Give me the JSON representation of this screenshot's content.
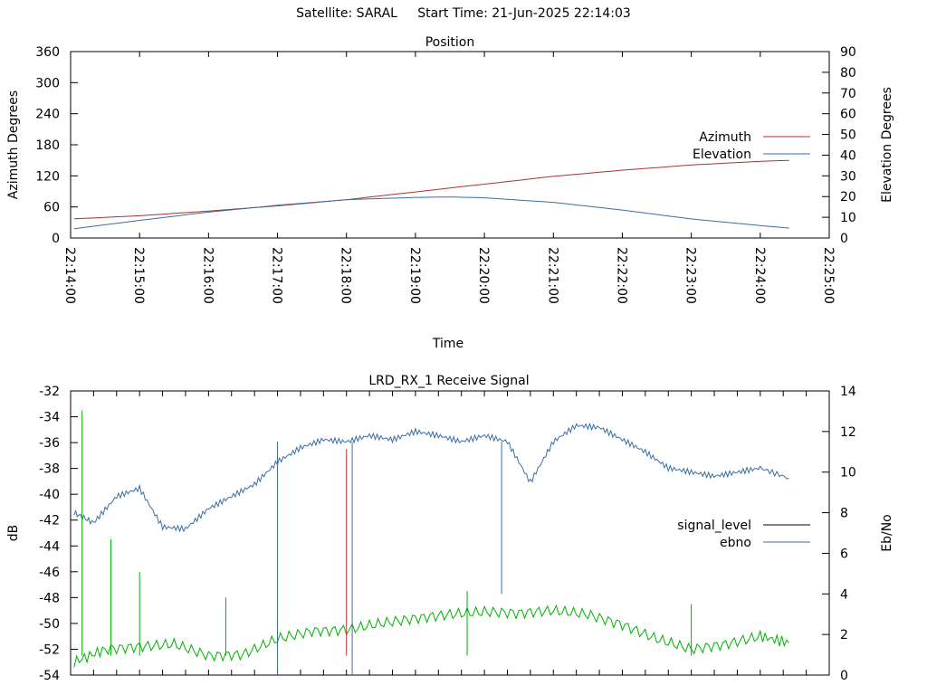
{
  "page_title": "Satellite: SARAL     Start Time: 21-Jun-2025 22:14:03",
  "colors": {
    "azimuth": "#a83232",
    "elevation": "#3a6ea5",
    "signal_level": "#000000",
    "ebno": "#3a6ea5",
    "green_trace": "#00b000",
    "red_trace": "#c03030"
  },
  "chart_data": [
    {
      "type": "line",
      "title": "Position",
      "xlabel": "Time",
      "ylabel": "Azimuth Degrees",
      "y2label": "Elevation Degrees",
      "xlim": [
        "22:14:00",
        "22:25:00"
      ],
      "ylim": [
        0,
        360
      ],
      "y2lim": [
        0,
        90
      ],
      "x_ticks": [
        "22:14:00",
        "22:15:00",
        "22:16:00",
        "22:17:00",
        "22:18:00",
        "22:19:00",
        "22:20:00",
        "22:21:00",
        "22:22:00",
        "22:23:00",
        "22:24:00",
        "22:25:00"
      ],
      "y_ticks": [
        "0",
        "60",
        "120",
        "180",
        "240",
        "300",
        "360"
      ],
      "y2_ticks": [
        "0",
        "10",
        "20",
        "30",
        "40",
        "50",
        "60",
        "70",
        "80",
        "90"
      ],
      "legend_position": "right",
      "grid": false,
      "series": [
        {
          "name": "Azimuth",
          "axis": "left",
          "x": [
            "22:14:03",
            "22:15:00",
            "22:16:00",
            "22:17:00",
            "22:18:00",
            "22:19:00",
            "22:20:00",
            "22:21:00",
            "22:22:00",
            "22:23:00",
            "22:24:00",
            "22:24:25"
          ],
          "values": [
            37,
            43,
            52,
            62,
            74,
            89,
            104,
            119,
            131,
            141,
            148,
            150
          ]
        },
        {
          "name": "Elevation",
          "axis": "right",
          "x": [
            "22:14:03",
            "22:15:00",
            "22:16:00",
            "22:17:00",
            "22:18:00",
            "22:19:00",
            "22:19:30",
            "22:20:00",
            "22:21:00",
            "22:22:00",
            "22:23:00",
            "22:24:00",
            "22:24:25"
          ],
          "values": [
            4.5,
            8.5,
            12.5,
            15.8,
            18.5,
            19.6,
            19.8,
            19.4,
            17.2,
            13.5,
            9.2,
            6.0,
            4.8
          ]
        }
      ]
    },
    {
      "type": "line",
      "title": "LRD_RX_1 Receive Signal",
      "xlabel": "",
      "ylabel": "dB",
      "y2label": "Eb/No",
      "xlim": [
        "22:14:00",
        "22:25:00"
      ],
      "ylim": [
        -54,
        -32
      ],
      "y2lim": [
        0,
        14
      ],
      "y_ticks": [
        "-54",
        "-52",
        "-50",
        "-48",
        "-46",
        "-44",
        "-42",
        "-40",
        "-38",
        "-36",
        "-34",
        "-32"
      ],
      "y2_ticks": [
        "0",
        "2",
        "4",
        "6",
        "8",
        "10",
        "12",
        "14"
      ],
      "legend_position": "right",
      "grid": false,
      "series": [
        {
          "name": "signal_level",
          "axis": "left",
          "x": [
            "22:14:03",
            "22:14:30",
            "22:15:00",
            "22:15:30",
            "22:16:00",
            "22:16:30",
            "22:17:00",
            "22:17:30",
            "22:18:00",
            "22:18:30",
            "22:19:00",
            "22:19:30",
            "22:20:00",
            "22:20:30",
            "22:21:00",
            "22:21:30",
            "22:22:00",
            "22:22:30",
            "22:23:00",
            "22:23:30",
            "22:24:00",
            "22:24:25"
          ],
          "values": [
            -53.0,
            -52.0,
            -51.8,
            -51.6,
            -52.5,
            -52.4,
            -51.2,
            -50.6,
            -50.5,
            -50.0,
            -49.6,
            -49.3,
            -49.1,
            -49.2,
            -49.0,
            -49.3,
            -50.1,
            -51.2,
            -52.0,
            -51.6,
            -51.0,
            -51.5
          ]
        },
        {
          "name": "ebno",
          "axis": "right",
          "x": [
            "22:14:03",
            "22:14:20",
            "22:14:40",
            "22:15:00",
            "22:15:20",
            "22:15:40",
            "22:16:00",
            "22:16:20",
            "22:16:40",
            "22:17:00",
            "22:17:20",
            "22:17:40",
            "22:18:00",
            "22:18:20",
            "22:18:40",
            "22:19:00",
            "22:19:20",
            "22:19:40",
            "22:20:00",
            "22:20:20",
            "22:20:40",
            "22:21:00",
            "22:21:20",
            "22:21:40",
            "22:22:00",
            "22:22:20",
            "22:22:40",
            "22:23:00",
            "22:23:20",
            "22:23:40",
            "22:24:00",
            "22:24:25"
          ],
          "values": [
            8.0,
            7.5,
            8.8,
            9.2,
            7.3,
            7.2,
            8.2,
            8.8,
            9.4,
            10.5,
            11.2,
            11.6,
            11.5,
            11.8,
            11.6,
            12.0,
            11.8,
            11.5,
            11.8,
            11.5,
            9.5,
            11.5,
            12.3,
            12.2,
            11.6,
            11.0,
            10.2,
            10.0,
            9.8,
            10.0,
            10.2,
            9.7
          ]
        }
      ]
    }
  ]
}
